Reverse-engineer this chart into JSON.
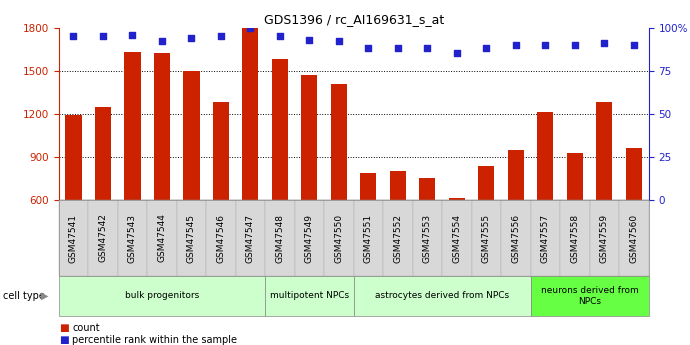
{
  "title": "GDS1396 / rc_AI169631_s_at",
  "samples": [
    "GSM47541",
    "GSM47542",
    "GSM47543",
    "GSM47544",
    "GSM47545",
    "GSM47546",
    "GSM47547",
    "GSM47548",
    "GSM47549",
    "GSM47550",
    "GSM47551",
    "GSM47552",
    "GSM47553",
    "GSM47554",
    "GSM47555",
    "GSM47556",
    "GSM47557",
    "GSM47558",
    "GSM47559",
    "GSM47560"
  ],
  "counts": [
    1190,
    1250,
    1630,
    1620,
    1500,
    1280,
    1800,
    1580,
    1470,
    1410,
    790,
    800,
    755,
    615,
    840,
    950,
    1210,
    930,
    1280,
    960
  ],
  "percentile_ranks": [
    95,
    95,
    96,
    92,
    94,
    95,
    100,
    95,
    93,
    92,
    88,
    88,
    88,
    85,
    88,
    90,
    90,
    90,
    91,
    90
  ],
  "group_defs": [
    {
      "start": 0,
      "end": 6,
      "label": "bulk progenitors",
      "color": "#ccffcc"
    },
    {
      "start": 7,
      "end": 9,
      "label": "multipotent NPCs",
      "color": "#ccffcc"
    },
    {
      "start": 10,
      "end": 15,
      "label": "astrocytes derived from NPCs",
      "color": "#ccffcc"
    },
    {
      "start": 16,
      "end": 19,
      "label": "neurons derived from\nNPCs",
      "color": "#66ff44"
    }
  ],
  "ylim_left": [
    600,
    1800
  ],
  "ylim_right": [
    0,
    100
  ],
  "yticks_left": [
    600,
    900,
    1200,
    1500,
    1800
  ],
  "yticks_right": [
    0,
    25,
    50,
    75,
    100
  ],
  "bar_color": "#cc2200",
  "dot_color": "#2222cc",
  "bar_width": 0.55,
  "legend_count_label": "count",
  "legend_pct_label": "percentile rank within the sample",
  "cell_type_label": "cell type",
  "xtick_bg_color": "#d8d8d8",
  "grid_color": "#333333",
  "title_fontsize": 9,
  "tick_labelsize": 7.5,
  "xtick_labelsize": 6.5
}
